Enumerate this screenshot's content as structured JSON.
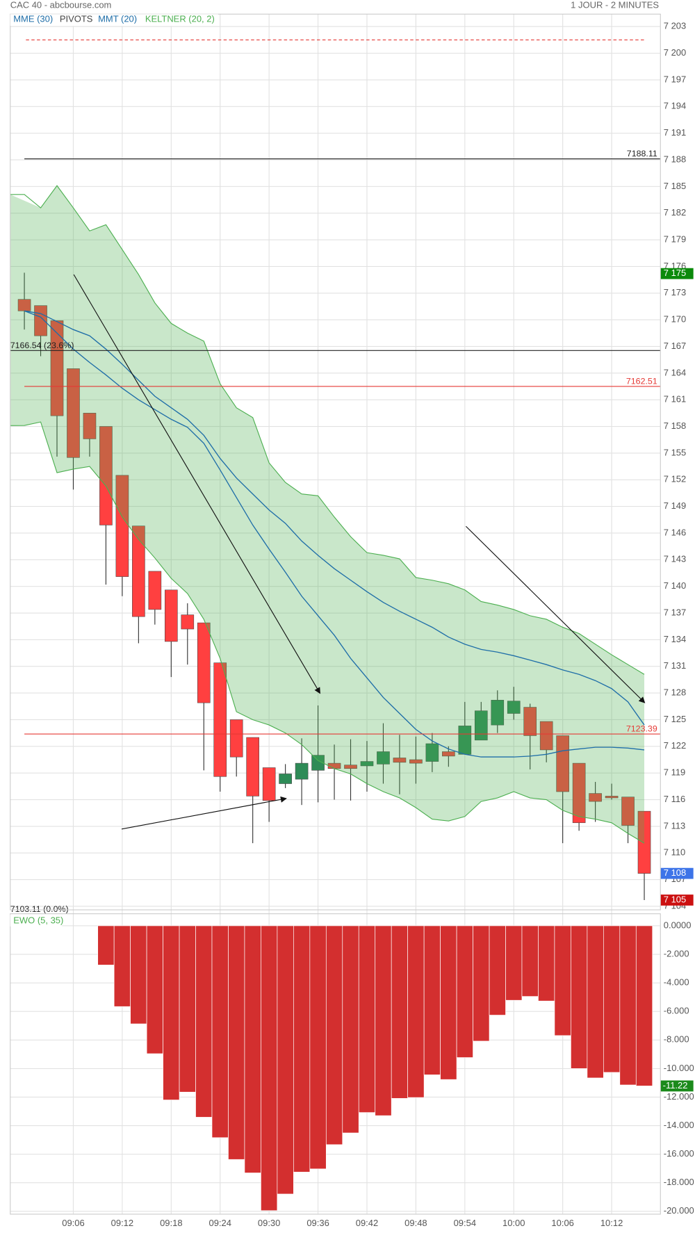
{
  "chart_data": [
    {
      "type": "candlestick",
      "title": "CAC 40 - abcbourse.com",
      "subtitle": "1 JOUR - 2 MINUTES",
      "up_color": "#2e8b57",
      "down_color": "#ff4040",
      "open": [
        7172.3,
        7171.6,
        7169.9,
        7164.5,
        7159.5,
        7158.0,
        7152.5,
        7146.8,
        7141.7,
        7139.6,
        7136.8,
        7135.9,
        7131.4,
        7125.0,
        7123.0,
        7119.6,
        7117.8,
        7118.3,
        7119.3,
        7120.1,
        7119.9,
        7119.8,
        7120.0,
        7120.7,
        7120.5,
        7120.3,
        7121.4,
        7121.1,
        7122.7,
        7124.4,
        7125.7,
        7126.4,
        7124.8,
        7123.2,
        7120.1,
        7116.7,
        7116.4,
        7116.3,
        7114.7
      ],
      "high": [
        7175.3,
        7171.6,
        7169.9,
        7164.5,
        7159.5,
        7158.0,
        7152.5,
        7146.8,
        7141.7,
        7139.6,
        7138.1,
        7135.9,
        7131.4,
        7125.0,
        7123.0,
        7119.6,
        7120.0,
        7122.9,
        7126.6,
        7122.2,
        7122.8,
        7122.6,
        7124.6,
        7123.3,
        7123.1,
        7123.5,
        7122.0,
        7127.0,
        7127.0,
        7128.3,
        7128.7,
        7126.8,
        7124.8,
        7123.2,
        7120.1,
        7118.0,
        7117.8,
        7116.3,
        7114.7
      ],
      "low": [
        7168.9,
        7165.9,
        7154.6,
        7150.9,
        7154.6,
        7140.2,
        7138.9,
        7133.6,
        7135.7,
        7129.8,
        7131.2,
        7119.3,
        7116.9,
        7118.6,
        7111.1,
        7113.5,
        7117.3,
        7115.4,
        7115.7,
        7116.0,
        7115.9,
        7116.9,
        7117.8,
        7116.6,
        7117.8,
        7119.1,
        7119.7,
        7121.1,
        7122.7,
        7123.5,
        7125.0,
        7119.4,
        7120.2,
        7111.1,
        7112.5,
        7113.5,
        7116.0,
        7111.1,
        7104.7
      ],
      "close": [
        7171.0,
        7168.2,
        7159.2,
        7154.5,
        7156.6,
        7146.9,
        7141.1,
        7136.6,
        7137.4,
        7133.8,
        7135.2,
        7126.9,
        7118.6,
        7120.8,
        7116.4,
        7115.9,
        7118.9,
        7120.1,
        7121.0,
        7119.5,
        7119.5,
        7120.3,
        7121.4,
        7120.2,
        7120.1,
        7122.3,
        7120.9,
        7124.3,
        7126.0,
        7127.2,
        7127.1,
        7123.2,
        7121.6,
        7116.9,
        7113.4,
        7115.8,
        7116.2,
        7113.1,
        7107.7
      ],
      "series": [
        {
          "name": "MME (30)",
          "color": "#1f6ea8",
          "values": [
            7171.0,
            7170.7,
            7169.8,
            7168.9,
            7168.2,
            7166.7,
            7165.0,
            7163.2,
            7161.4,
            7160.1,
            7158.8,
            7157.0,
            7154.4,
            7152.2,
            7150.4,
            7148.6,
            7147.1,
            7145.1,
            7143.5,
            7142.0,
            7140.7,
            7139.4,
            7138.2,
            7137.2,
            7136.3,
            7135.4,
            7134.3,
            7133.5,
            7132.9,
            7132.6,
            7132.2,
            7131.7,
            7131.2,
            7130.6,
            7130.1,
            7129.4,
            7128.5,
            7127.0,
            7124.4
          ]
        },
        {
          "name": "MMT (20)",
          "color": "#1f6ea8",
          "values": [
            7171.0,
            7170.3,
            7168.5,
            7166.7,
            7165.2,
            7163.8,
            7162.3,
            7161.0,
            7159.9,
            7158.8,
            7157.9,
            7156.1,
            7153.1,
            7150.0,
            7146.9,
            7144.2,
            7141.6,
            7138.9,
            7136.7,
            7134.5,
            7131.9,
            7129.7,
            7127.5,
            7125.7,
            7123.9,
            7122.6,
            7121.7,
            7121.1,
            7120.8,
            7120.8,
            7120.8,
            7120.9,
            7121.1,
            7121.5,
            7121.7,
            7121.9,
            7121.9,
            7121.8,
            7121.6
          ]
        }
      ],
      "band": {
        "name": "KELTNER (20, 2)",
        "color": "#4caf50",
        "upper": [
          7184.1,
          7182.6,
          7185.1,
          7182.6,
          7180.0,
          7180.7,
          7177.9,
          7175.1,
          7171.9,
          7169.6,
          7168.5,
          7167.6,
          7162.8,
          7160.1,
          7159.0,
          7153.9,
          7151.7,
          7150.4,
          7150.2,
          7147.8,
          7145.6,
          7143.8,
          7143.5,
          7143.1,
          7141.0,
          7140.7,
          7140.3,
          7139.6,
          7138.3,
          7137.9,
          7137.4,
          7136.7,
          7136.3,
          7135.4,
          7134.7,
          7133.5,
          7132.3,
          7131.2,
          7130.1
        ],
        "lower": [
          7158.1,
          7158.5,
          7152.8,
          7153.2,
          7153.5,
          7151.3,
          7147.8,
          7145.3,
          7143.2,
          7140.9,
          7139.2,
          7136.3,
          7131.9,
          7125.9,
          7125.0,
          7124.4,
          7123.5,
          7122.2,
          7120.4,
          7119.5,
          7118.9,
          7117.8,
          7116.9,
          7116.2,
          7115.1,
          7113.8,
          7113.6,
          7114.1,
          7115.8,
          7116.2,
          7116.9,
          7116.2,
          7116.0,
          7114.8,
          7114.1,
          7113.8,
          7113.4,
          7112.2,
          7111.1
        ]
      },
      "pivots": {
        "name": "PIVOTS",
        "color": "#444444",
        "levels": [
          {
            "value": 7201.5,
            "color": "#e53935",
            "dash": true
          },
          {
            "value": 7188.11,
            "color": "#222222"
          },
          {
            "value": 7166.54,
            "label": "7166.54 (23.6%)",
            "color": "#222222",
            "label_side": "left"
          },
          {
            "value": 7162.51,
            "color": "#e53935"
          },
          {
            "value": 7123.39,
            "color": "#e53935"
          },
          {
            "value": 7103.11,
            "label": "7103.11 (0.0%)",
            "color": "#222222",
            "label_side": "left"
          }
        ]
      },
      "tags": [
        {
          "value": 7175.2,
          "label": "7 175",
          "color": "#0b8a0b"
        },
        {
          "value": 7107.7,
          "label": "7 108",
          "color": "#3d74e8"
        },
        {
          "value": 7104.7,
          "label": "7 105",
          "color": "#cc1111"
        }
      ],
      "ylim": [
        7103.6,
        7204.4
      ],
      "yticks": [
        {
          "value": 7104,
          "label": "7 104"
        },
        {
          "value": 7107,
          "label": "7 107"
        },
        {
          "value": 7110,
          "label": "7 110"
        },
        {
          "value": 7113,
          "label": "7 113"
        },
        {
          "value": 7116,
          "label": "7 116"
        },
        {
          "value": 7119,
          "label": "7 119"
        },
        {
          "value": 7122,
          "label": "7 122"
        },
        {
          "value": 7125,
          "label": "7 125"
        },
        {
          "value": 7128,
          "label": "7 128"
        },
        {
          "value": 7131,
          "label": "7 131"
        },
        {
          "value": 7134,
          "label": "7 134"
        },
        {
          "value": 7137,
          "label": "7 137"
        },
        {
          "value": 7140,
          "label": "7 140"
        },
        {
          "value": 7143,
          "label": "7 143"
        },
        {
          "value": 7146,
          "label": "7 146"
        },
        {
          "value": 7149,
          "label": "7 149"
        },
        {
          "value": 7152,
          "label": "7 152"
        },
        {
          "value": 7155,
          "label": "7 155"
        },
        {
          "value": 7158,
          "label": "7 158"
        },
        {
          "value": 7161,
          "label": "7 161"
        },
        {
          "value": 7164,
          "label": "7 164"
        },
        {
          "value": 7167,
          "label": "7 167"
        },
        {
          "value": 7170,
          "label": "7 170"
        },
        {
          "value": 7173,
          "label": "7 173"
        },
        {
          "value": 7176,
          "label": "7 176"
        },
        {
          "value": 7179,
          "label": "7 179"
        },
        {
          "value": 7182,
          "label": "7 182"
        },
        {
          "value": 7185,
          "label": "7 185"
        },
        {
          "value": 7188,
          "label": "7 188"
        },
        {
          "value": 7191,
          "label": "7 191"
        },
        {
          "value": 7194,
          "label": "7 194"
        },
        {
          "value": 7197,
          "label": "7 197"
        },
        {
          "value": 7200,
          "label": "7 200"
        },
        {
          "value": 7203,
          "label": "7 203"
        }
      ],
      "grid": true
    },
    {
      "type": "bar",
      "categories": [
        null,
        null,
        null,
        "09:06",
        null,
        null,
        "09:12",
        null,
        null,
        "09:18",
        null,
        null,
        "09:24",
        null,
        null,
        "09:30",
        null,
        null,
        "09:36",
        null,
        null,
        "09:42",
        null,
        null,
        "09:48",
        null,
        null,
        "09:54",
        null,
        null,
        "10:00",
        null,
        null,
        "10:06",
        null,
        null,
        "10:12",
        null,
        null
      ],
      "series": [
        {
          "name": "EWO (5, 35)",
          "color": "#d32f2f",
          "label_color": "#1b8a1b",
          "values": [
            null,
            null,
            null,
            null,
            null,
            -2.75,
            -5.66,
            -6.87,
            -8.96,
            -12.2,
            -11.65,
            -13.41,
            -14.84,
            -16.37,
            -17.31,
            -19.95,
            -18.79,
            -17.25,
            -17.03,
            -15.33,
            -14.51,
            -13.08,
            -13.3,
            -12.09,
            -12.03,
            -10.44,
            -10.77,
            -9.23,
            -8.08,
            -6.26,
            -5.22,
            -4.95,
            -5.27,
            -7.69,
            -10.0,
            -10.66,
            -10.27,
            -11.15,
            -11.22
          ],
          "value_labels": [
            null,
            null,
            null,
            null,
            null,
            null,
            null,
            null,
            null,
            null,
            null,
            null,
            null,
            null,
            null,
            null,
            null,
            null,
            null,
            null,
            null,
            null,
            null,
            null,
            null,
            null,
            null,
            null,
            null,
            null,
            null,
            null,
            null,
            null,
            null,
            null,
            null,
            null,
            "-11.22"
          ]
        }
      ],
      "legend_color": "#4caf50",
      "ylim": [
        -20.2,
        0.84
      ],
      "yticks": [
        {
          "value": 0,
          "label": "0.0000"
        },
        {
          "value": -2,
          "label": "-2.000"
        },
        {
          "value": -4,
          "label": "-4.000"
        },
        {
          "value": -6,
          "label": "-6.000"
        },
        {
          "value": -8,
          "label": "-8.000"
        },
        {
          "value": -10,
          "label": "-10.000"
        },
        {
          "value": -12,
          "label": "-12.000"
        },
        {
          "value": -14,
          "label": "-14.000"
        },
        {
          "value": -16,
          "label": "-16.000"
        },
        {
          "value": -18,
          "label": "-18.000"
        },
        {
          "value": -20,
          "label": "-20.000"
        }
      ],
      "grid": true
    }
  ]
}
